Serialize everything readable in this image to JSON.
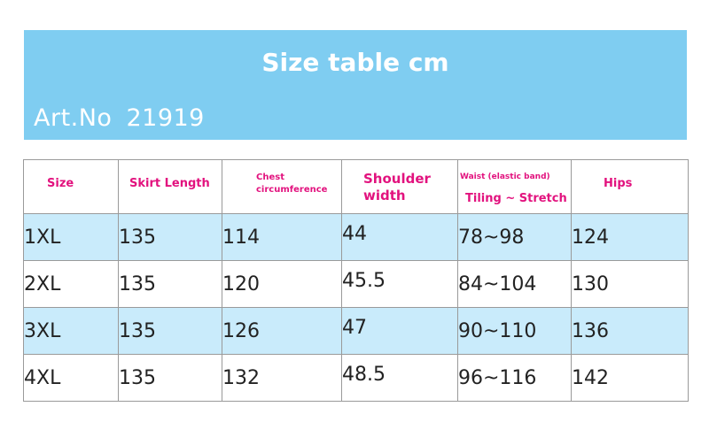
{
  "banner": {
    "title": "Size table cm",
    "art_label": "Art.No",
    "art_number": "21919"
  },
  "colors": {
    "banner_bg": "#7fcdf1",
    "header_text": "#e2127e",
    "row_highlight": "#c9ebfb"
  },
  "table": {
    "headers": {
      "size": "Size",
      "skirt_length": "Skirt Length",
      "chest_line1": "Chest",
      "chest_line2": "circumference",
      "shoulder_line1": "Shoulder",
      "shoulder_line2": "width",
      "waist_line1": "Waist (elastic band)",
      "waist_line2": "Tiling ~ Stretch",
      "hips": "Hips"
    },
    "rows": [
      {
        "size": "1XL",
        "skirt_length": "135",
        "chest": "114",
        "shoulder": "44",
        "waist": "78~98",
        "hips": "124"
      },
      {
        "size": "2XL",
        "skirt_length": "135",
        "chest": "120",
        "shoulder": "45.5",
        "waist": "84~104",
        "hips": "130"
      },
      {
        "size": "3XL",
        "skirt_length": "135",
        "chest": "126",
        "shoulder": "47",
        "waist": "90~110",
        "hips": "136"
      },
      {
        "size": "4XL",
        "skirt_length": "135",
        "chest": "132",
        "shoulder": "48.5",
        "waist": "96~116",
        "hips": "142"
      }
    ]
  }
}
